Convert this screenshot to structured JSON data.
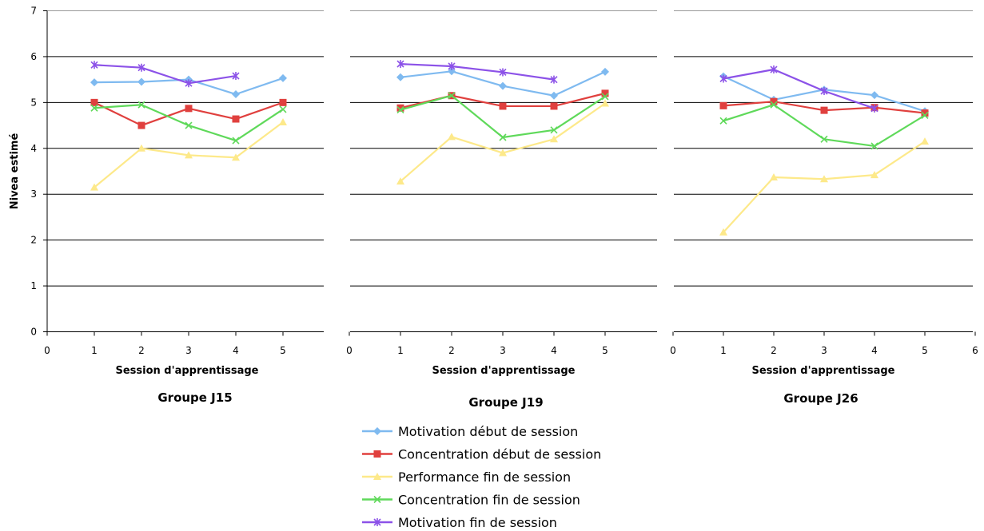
{
  "chart_data": {
    "type": "line",
    "ylabel": "Nivea estimé",
    "xlabel": "Session d'apprentissage",
    "ylim": [
      0,
      7
    ],
    "grid": true,
    "legend_position": "bottom-center",
    "panels": [
      {
        "title": "Groupe J15",
        "xlim": [
          0,
          6
        ],
        "x_ticks": [
          "0",
          "1",
          "2",
          "3",
          "4",
          "5"
        ],
        "y_ticks": [
          "0",
          "1",
          "2",
          "3",
          "4",
          "5",
          "6",
          "7"
        ],
        "series": [
          {
            "x": [
              1,
              2,
              3,
              4,
              5
            ],
            "values": [
              5.44,
              5.45,
              5.5,
              5.18,
              5.53
            ]
          },
          {
            "x": [
              1,
              2,
              3,
              4,
              5
            ],
            "values": [
              5.0,
              4.5,
              4.87,
              4.64,
              5.0
            ]
          },
          {
            "x": [
              1,
              2,
              3,
              4,
              5
            ],
            "values": [
              3.15,
              4.0,
              3.85,
              3.8,
              4.57
            ]
          },
          {
            "x": [
              1,
              2,
              3,
              4,
              5
            ],
            "values": [
              4.88,
              4.95,
              4.5,
              4.17,
              4.85
            ]
          },
          {
            "x": [
              1,
              2,
              3,
              4
            ],
            "values": [
              5.82,
              5.76,
              5.42,
              5.58
            ]
          }
        ]
      },
      {
        "title": "Groupe J19",
        "xlim": [
          0,
          6
        ],
        "x_ticks": [
          "0",
          "1",
          "2",
          "3",
          "4",
          "5"
        ],
        "y_ticks": [],
        "series": [
          {
            "x": [
              1,
              2,
              3,
              4,
              5
            ],
            "values": [
              5.55,
              5.68,
              5.36,
              5.15,
              5.67
            ]
          },
          {
            "x": [
              1,
              2,
              3,
              4,
              5
            ],
            "values": [
              4.88,
              5.15,
              4.92,
              4.92,
              5.2
            ]
          },
          {
            "x": [
              1,
              2,
              3,
              4,
              5
            ],
            "values": [
              3.28,
              4.25,
              3.9,
              4.2,
              4.98
            ]
          },
          {
            "x": [
              1,
              2,
              3,
              4,
              5
            ],
            "values": [
              4.84,
              5.15,
              4.24,
              4.4,
              5.13
            ]
          },
          {
            "x": [
              1,
              2,
              3,
              4
            ],
            "values": [
              5.84,
              5.79,
              5.66,
              5.5
            ]
          }
        ]
      },
      {
        "title": "Groupe J26",
        "xlim": [
          0,
          6
        ],
        "x_ticks": [
          "0",
          "1",
          "2",
          "3",
          "4",
          "5",
          "6"
        ],
        "y_ticks": [],
        "series": [
          {
            "x": [
              1,
              2,
              3,
              4,
              5
            ],
            "values": [
              5.57,
              5.06,
              5.28,
              5.16,
              4.81
            ]
          },
          {
            "x": [
              1,
              2,
              3,
              4,
              5
            ],
            "values": [
              4.93,
              5.02,
              4.83,
              4.89,
              4.77
            ]
          },
          {
            "x": [
              1,
              2,
              3,
              4,
              5
            ],
            "values": [
              2.17,
              3.37,
              3.33,
              3.42,
              4.15
            ]
          },
          {
            "x": [
              1,
              2,
              3,
              4,
              5
            ],
            "values": [
              4.6,
              4.95,
              4.2,
              4.05,
              4.72
            ]
          },
          {
            "x": [
              1,
              2,
              3,
              4
            ],
            "values": [
              5.52,
              5.72,
              5.25,
              4.87
            ]
          }
        ]
      }
    ],
    "legend": [
      {
        "name": "Motivation début de session",
        "color": "#7fbaf0",
        "marker": "diamond"
      },
      {
        "name": "Concentration début de session",
        "color": "#e0403e",
        "marker": "square"
      },
      {
        "name": "Performance fin de session",
        "color": "#fde98a",
        "marker": "triangle"
      },
      {
        "name": "Concentration fin de session",
        "color": "#5fd95a",
        "marker": "x"
      },
      {
        "name": "Motivation fin de session",
        "color": "#8c52e8",
        "marker": "star"
      }
    ]
  }
}
